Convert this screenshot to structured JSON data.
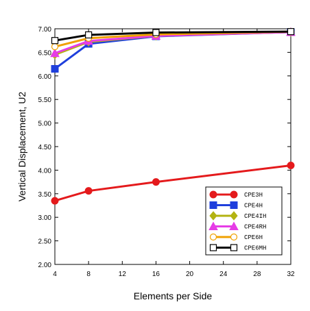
{
  "chart_data": {
    "type": "line",
    "xlabel": "Elements per Side",
    "ylabel": "Vertical Displacement, U2",
    "xlim": [
      4,
      32
    ],
    "ylim": [
      2.0,
      7.0
    ],
    "x_ticks": [
      4,
      8,
      12,
      16,
      20,
      24,
      28,
      32
    ],
    "y_ticks": [
      "2.00",
      "2.50",
      "3.00",
      "3.50",
      "4.00",
      "4.50",
      "5.00",
      "5.50",
      "6.00",
      "6.50",
      "7.00"
    ],
    "grid": false,
    "legend_position": "lower-right",
    "series": [
      {
        "name": "CPE3H",
        "color": "#e41a1c",
        "marker": "filled-circle",
        "x": [
          4,
          8,
          16,
          32
        ],
        "values": [
          3.35,
          3.56,
          3.75,
          4.1
        ]
      },
      {
        "name": "CPE4H",
        "color": "#1f3fdc",
        "marker": "filled-square",
        "x": [
          4,
          8,
          16,
          32
        ],
        "values": [
          6.15,
          6.68,
          6.84,
          6.93
        ]
      },
      {
        "name": "CPE4IH",
        "color": "#b3b312",
        "marker": "filled-diamond",
        "x": [
          4,
          8,
          16,
          32
        ],
        "values": [
          6.45,
          6.72,
          6.85,
          6.93
        ]
      },
      {
        "name": "CPE4RH",
        "color": "#e63ce6",
        "marker": "filled-triangle",
        "x": [
          4,
          8,
          16,
          32
        ],
        "values": [
          6.48,
          6.74,
          6.85,
          6.93
        ]
      },
      {
        "name": "CPE6H",
        "color": "#f0a000",
        "marker": "open-circle",
        "x": [
          4,
          8,
          16,
          32
        ],
        "values": [
          6.62,
          6.8,
          6.88,
          6.94
        ]
      },
      {
        "name": "CPE6MH",
        "color": "#000000",
        "marker": "open-square",
        "x": [
          4,
          8,
          16,
          32
        ],
        "values": [
          6.75,
          6.87,
          6.92,
          6.94
        ]
      }
    ]
  }
}
